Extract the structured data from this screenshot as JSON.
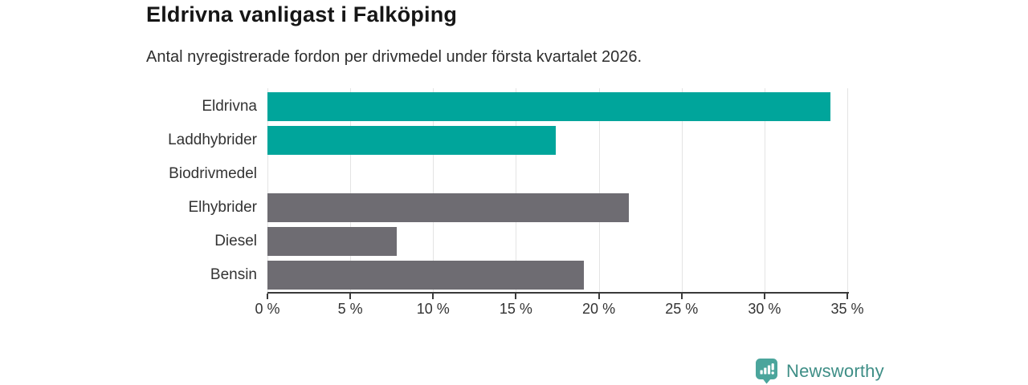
{
  "header": {
    "title": "Eldrivna vanligast i Falköping",
    "subtitle": "Antal nyregistrerade fordon per drivmedel under första kvartalet 2026."
  },
  "chart_data": {
    "type": "bar",
    "orientation": "horizontal",
    "title": "Eldrivna vanligast i Falköping",
    "subtitle": "Antal nyregistrerade fordon per drivmedel under första kvartalet 2026.",
    "categories": [
      "Eldrivna",
      "Laddhybrider",
      "Biodrivmedel",
      "Elhybrider",
      "Diesel",
      "Bensin"
    ],
    "values": [
      34.0,
      17.4,
      0,
      21.8,
      7.8,
      19.1
    ],
    "unit": "%",
    "xlim": [
      0,
      35
    ],
    "x_ticks": [
      0,
      5,
      10,
      15,
      20,
      25,
      30,
      35
    ],
    "x_tick_labels": [
      "0 %",
      "5 %",
      "10 %",
      "15 %",
      "20 %",
      "25 %",
      "30 %",
      "35 %"
    ],
    "bar_colors": [
      "#00a59b",
      "#00a59b",
      "#00a59b",
      "#6e6c72",
      "#6e6c72",
      "#6e6c72"
    ],
    "grid": true,
    "gridline_color": "#e4e4e4",
    "axis_color": "#3a3a3a",
    "highlight_color": "#00a59b",
    "default_color": "#6e6c72",
    "value_labels": false,
    "legend": "none"
  },
  "branding": {
    "logo_text": "Newsworthy",
    "logo_text_color": "#3e8e86",
    "logo_icon": "newsworthy-chart-bubble-icon",
    "logo_icon_color": "#4ba59c"
  }
}
